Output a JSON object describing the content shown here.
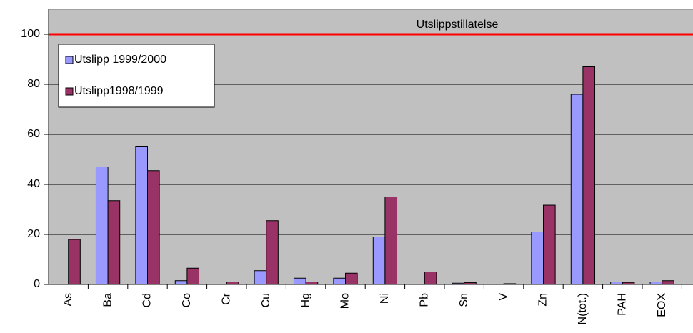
{
  "chart_data": {
    "type": "bar",
    "categories": [
      "As",
      "Ba",
      "Cd",
      "Co",
      "Cr",
      "Cu",
      "Hg",
      "Mo",
      "Ni",
      "Pb",
      "Sn",
      "V",
      "Zn",
      "N(tot.)",
      "PAH",
      "EOX"
    ],
    "series": [
      {
        "name": "Utslipp 1999/2000",
        "color": "#9999ff",
        "values": [
          0,
          47,
          55,
          1.5,
          0,
          5.5,
          2.5,
          2.5,
          19,
          0,
          0.5,
          0,
          21,
          76,
          1,
          1
        ]
      },
      {
        "name": "Utslipp1998/1999",
        "color": "#993366",
        "values": [
          18,
          33.5,
          45.5,
          6.5,
          1,
          25.5,
          1,
          4.5,
          35,
          5,
          0.7,
          0.3,
          31.7,
          87,
          0.8,
          1.5
        ]
      }
    ],
    "ylim": [
      0,
      110
    ],
    "yticks": [
      0,
      20,
      40,
      60,
      80,
      100
    ],
    "grid": true,
    "reference_line": {
      "label": "Utslippstillatelse",
      "value": 100,
      "color": "#ff0000"
    },
    "legend": "top-left",
    "plot_background": "#c0c0c0"
  }
}
